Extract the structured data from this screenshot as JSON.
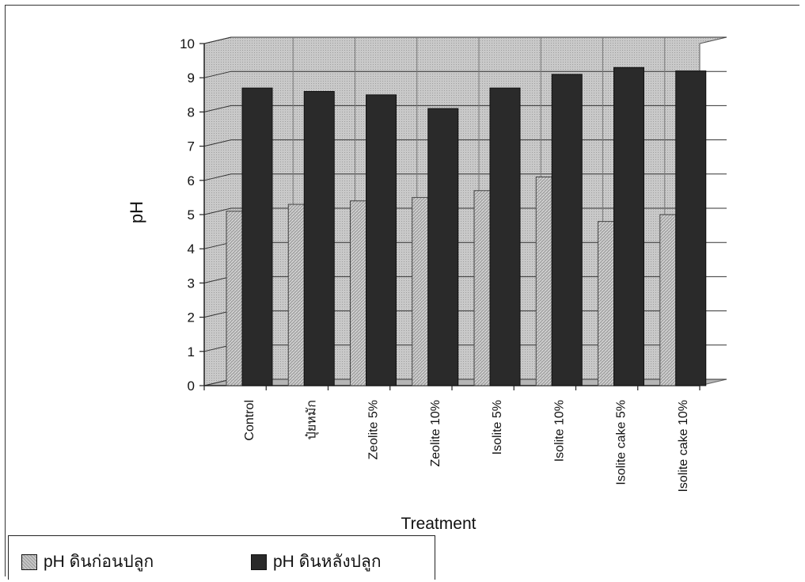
{
  "chart_data": {
    "type": "bar",
    "title": "",
    "xlabel": "Treatment",
    "ylabel": "pH",
    "ylim": [
      0,
      10
    ],
    "yticks": [
      0,
      1,
      2,
      3,
      4,
      5,
      6,
      7,
      8,
      9,
      10
    ],
    "grid": true,
    "legend_position": "bottom-left",
    "categories": [
      "Control",
      "ปุ๋ยหมัก",
      "Zeolite 5%",
      "Zeolite 10%",
      "Isolite 5%",
      "Isolite 10%",
      "Isolite cake 5%",
      "Isolite cake 10%"
    ],
    "series": [
      {
        "name": "pH ดินก่อนปลูก",
        "values": [
          5.1,
          5.3,
          5.4,
          5.5,
          5.7,
          6.1,
          4.8,
          5.0
        ],
        "color": "#a8a8a8"
      },
      {
        "name": "pH ดินหลังปลูก",
        "values": [
          8.7,
          8.6,
          8.5,
          8.1,
          8.7,
          9.1,
          9.3,
          9.2
        ],
        "color": "#2a2a2a"
      }
    ]
  }
}
